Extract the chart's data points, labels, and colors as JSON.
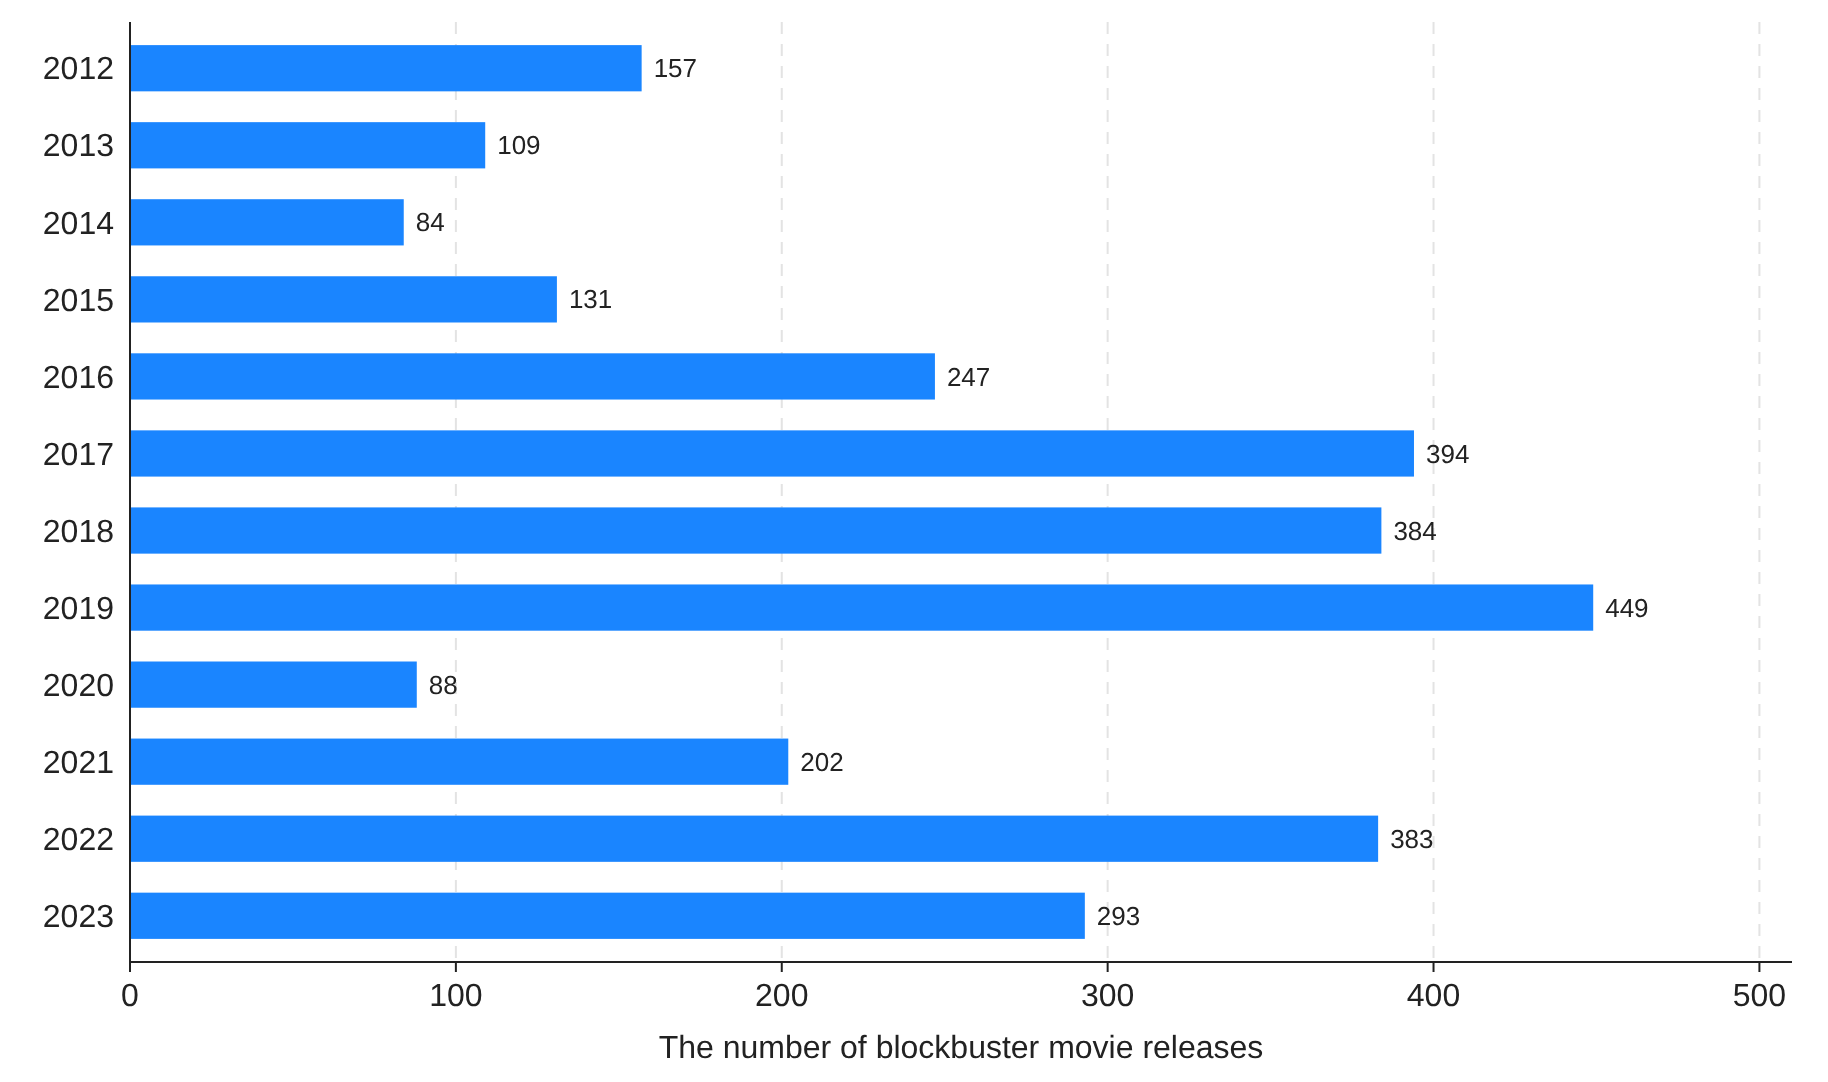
{
  "chart_data": {
    "type": "bar",
    "orientation": "horizontal",
    "xlabel": "The number of blockbuster movie releases",
    "categories": [
      "2012",
      "2013",
      "2014",
      "2015",
      "2016",
      "2017",
      "2018",
      "2019",
      "2020",
      "2021",
      "2022",
      "2023"
    ],
    "values": [
      157,
      109,
      84,
      131,
      247,
      394,
      384,
      449,
      88,
      202,
      383,
      293
    ],
    "color": "#1a85ff",
    "xlim": [
      0,
      510
    ],
    "xticks": [
      0,
      100,
      200,
      300,
      400,
      500
    ],
    "grid": "x",
    "data_labels": true
  }
}
